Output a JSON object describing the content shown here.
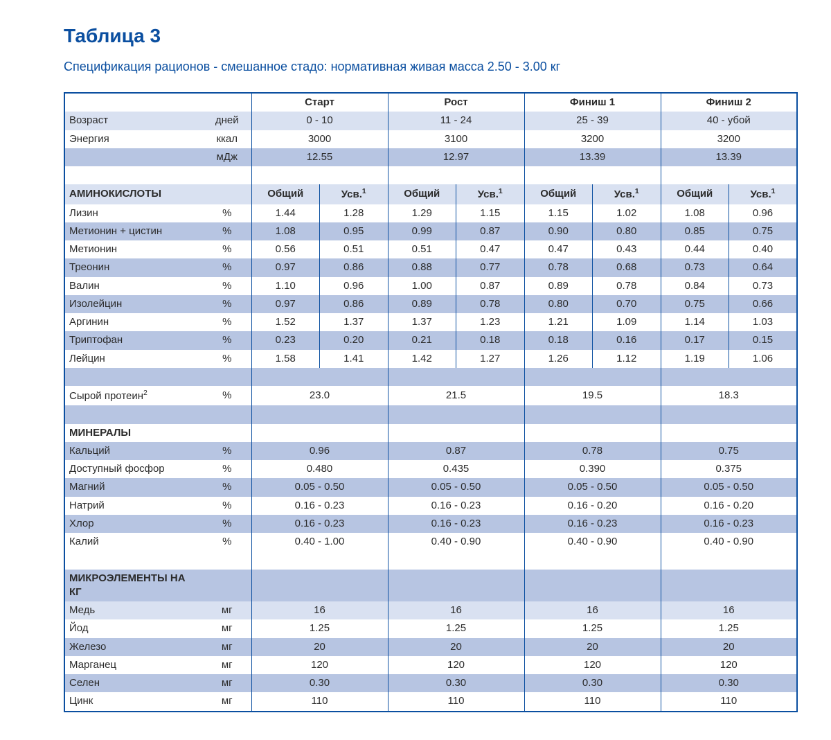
{
  "title": "Таблица 3",
  "subtitle": "Спецификация рационов - смешанное стадо: нормативная живая масса 2.50 - 3.00 кг",
  "phases": [
    "Старт",
    "Рост",
    "Финиш 1",
    "Финиш 2"
  ],
  "sub_headers": {
    "total": "Общий",
    "digest": "Усв.",
    "digest_sup": "1"
  },
  "units": {
    "days": "дней",
    "kcal": "ккал",
    "mj": "мДж",
    "pct": "%",
    "mg": "мг"
  },
  "top_rows": {
    "age": {
      "label": "Возраст",
      "unit": "дней",
      "vals": [
        "0 - 10",
        "11 - 24",
        "25 - 39",
        "40 - убой"
      ]
    },
    "energy": {
      "label": "Энергия",
      "unit": "ккал",
      "vals": [
        "3000",
        "3100",
        "3200",
        "3200"
      ]
    },
    "energy_mj": {
      "label": "",
      "unit": "мДж",
      "vals": [
        "12.55",
        "12.97",
        "13.39",
        "13.39"
      ]
    }
  },
  "sections": {
    "amino": {
      "title": "АМИНОКИСЛОТЫ",
      "rows": [
        {
          "label": "Лизин",
          "unit": "%",
          "vals": [
            "1.44",
            "1.28",
            "1.29",
            "1.15",
            "1.15",
            "1.02",
            "1.08",
            "0.96"
          ]
        },
        {
          "label": "Метионин + цистин",
          "unit": "%",
          "vals": [
            "1.08",
            "0.95",
            "0.99",
            "0.87",
            "0.90",
            "0.80",
            "0.85",
            "0.75"
          ]
        },
        {
          "label": "Метионин",
          "unit": "%",
          "vals": [
            "0.56",
            "0.51",
            "0.51",
            "0.47",
            "0.47",
            "0.43",
            "0.44",
            "0.40"
          ]
        },
        {
          "label": "Треонин",
          "unit": "%",
          "vals": [
            "0.97",
            "0.86",
            "0.88",
            "0.77",
            "0.78",
            "0.68",
            "0.73",
            "0.64"
          ]
        },
        {
          "label": "Валин",
          "unit": "%",
          "vals": [
            "1.10",
            "0.96",
            "1.00",
            "0.87",
            "0.89",
            "0.78",
            "0.84",
            "0.73"
          ]
        },
        {
          "label": "Изолейцин",
          "unit": "%",
          "vals": [
            "0.97",
            "0.86",
            "0.89",
            "0.78",
            "0.80",
            "0.70",
            "0.75",
            "0.66"
          ]
        },
        {
          "label": "Аргинин",
          "unit": "%",
          "vals": [
            "1.52",
            "1.37",
            "1.37",
            "1.23",
            "1.21",
            "1.09",
            "1.14",
            "1.03"
          ]
        },
        {
          "label": "Триптофан",
          "unit": "%",
          "vals": [
            "0.23",
            "0.20",
            "0.21",
            "0.18",
            "0.18",
            "0.16",
            "0.17",
            "0.15"
          ]
        },
        {
          "label": "Лейцин",
          "unit": "%",
          "vals": [
            "1.58",
            "1.41",
            "1.42",
            "1.27",
            "1.26",
            "1.12",
            "1.19",
            "1.06"
          ]
        }
      ]
    },
    "crude_protein": {
      "label": "Сырой протеин",
      "label_sup": "2",
      "unit": "%",
      "vals": [
        "23.0",
        "21.5",
        "19.5",
        "18.3"
      ]
    },
    "minerals": {
      "title": "МИНЕРАЛЫ",
      "rows": [
        {
          "label": "Кальций",
          "unit": "%",
          "vals": [
            "0.96",
            "0.87",
            "0.78",
            "0.75"
          ]
        },
        {
          "label": "Доступный фосфор",
          "unit": "%",
          "vals": [
            "0.480",
            "0.435",
            "0.390",
            "0.375"
          ]
        },
        {
          "label": "Магний",
          "unit": "%",
          "vals": [
            "0.05 - 0.50",
            "0.05 - 0.50",
            "0.05 - 0.50",
            "0.05 - 0.50"
          ]
        },
        {
          "label": "Натрий",
          "unit": "%",
          "vals": [
            "0.16 - 0.23",
            "0.16 - 0.23",
            "0.16 - 0.20",
            "0.16 - 0.20"
          ]
        },
        {
          "label": "Хлор",
          "unit": "%",
          "vals": [
            "0.16 - 0.23",
            "0.16 - 0.23",
            "0.16 - 0.23",
            "0.16 - 0.23"
          ]
        },
        {
          "label": "Калий",
          "unit": "%",
          "vals": [
            "0.40 - 1.00",
            "0.40 - 0.90",
            "0.40 - 0.90",
            "0.40 - 0.90"
          ]
        }
      ]
    },
    "trace": {
      "title": "МИКРОЭЛЕМЕНТЫ НА КГ",
      "rows": [
        {
          "label": "Медь",
          "unit": "мг",
          "vals": [
            "16",
            "16",
            "16",
            "16"
          ]
        },
        {
          "label": "Йод",
          "unit": "мг",
          "vals": [
            "1.25",
            "1.25",
            "1.25",
            "1.25"
          ]
        },
        {
          "label": "Железо",
          "unit": "мг",
          "vals": [
            "20",
            "20",
            "20",
            "20"
          ]
        },
        {
          "label": "Марганец",
          "unit": "мг",
          "vals": [
            "120",
            "120",
            "120",
            "120"
          ]
        },
        {
          "label": "Селен",
          "unit": "мг",
          "vals": [
            "0.30",
            "0.30",
            "0.30",
            "0.30"
          ]
        },
        {
          "label": "Цинк",
          "unit": "мг",
          "vals": [
            "110",
            "110",
            "110",
            "110"
          ]
        }
      ]
    }
  },
  "style": {
    "brand_blue": "#0b4fa0",
    "row_colors": {
      "light": "#ffffff",
      "mid": "#d9e1f1",
      "dark": "#b7c5e2"
    },
    "font_family": "Segoe UI / Helvetica Neue / Arial",
    "title_fontsize_pt": 21,
    "subtitle_fontsize_pt": 14,
    "body_fontsize_pt": 11
  }
}
